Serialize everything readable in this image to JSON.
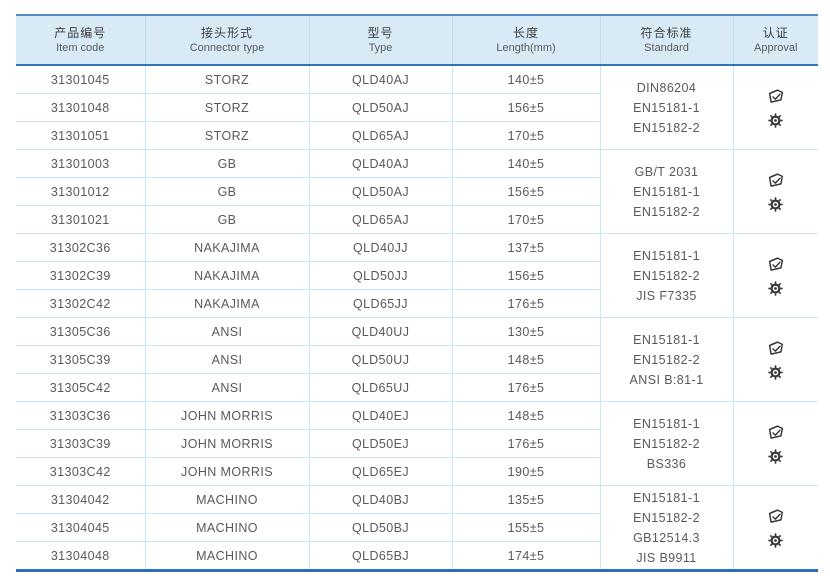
{
  "table": {
    "columns": [
      {
        "zh": "产品编号",
        "en": "Item code"
      },
      {
        "zh": "接头形式",
        "en": "Connector type"
      },
      {
        "zh": "型号",
        "en": "Type"
      },
      {
        "zh": "长度",
        "en": "Length(mm)"
      },
      {
        "zh": "符合标准",
        "en": "Standard"
      },
      {
        "zh": "认证",
        "en": "Approval"
      }
    ],
    "approval_icons": [
      "certificate-stamp-icon",
      "certification-seal-icon"
    ],
    "groups": [
      {
        "rows": [
          {
            "item_code": "31301045",
            "connector": "STORZ",
            "type": "QLD40AJ",
            "length": "140±5"
          },
          {
            "item_code": "31301048",
            "connector": "STORZ",
            "type": "QLD50AJ",
            "length": "156±5"
          },
          {
            "item_code": "31301051",
            "connector": "STORZ",
            "type": "QLD65AJ",
            "length": "170±5"
          }
        ],
        "standards": [
          "DIN86204",
          "EN15181-1",
          "EN15182-2"
        ]
      },
      {
        "rows": [
          {
            "item_code": "31301003",
            "connector": "GB",
            "type": "QLD40AJ",
            "length": "140±5"
          },
          {
            "item_code": "31301012",
            "connector": "GB",
            "type": "QLD50AJ",
            "length": "156±5"
          },
          {
            "item_code": "31301021",
            "connector": "GB",
            "type": "QLD65AJ",
            "length": "170±5"
          }
        ],
        "standards": [
          "GB/T 2031",
          "EN15181-1",
          "EN15182-2"
        ]
      },
      {
        "rows": [
          {
            "item_code": "31302C36",
            "connector": "NAKAJIMA",
            "type": "QLD40JJ",
            "length": "137±5"
          },
          {
            "item_code": "31302C39",
            "connector": "NAKAJIMA",
            "type": "QLD50JJ",
            "length": "156±5"
          },
          {
            "item_code": "31302C42",
            "connector": "NAKAJIMA",
            "type": "QLD65JJ",
            "length": "176±5"
          }
        ],
        "standards": [
          "EN15181-1",
          "EN15182-2",
          "JIS F7335"
        ]
      },
      {
        "rows": [
          {
            "item_code": "31305C36",
            "connector": "ANSI",
            "type": "QLD40UJ",
            "length": "130±5"
          },
          {
            "item_code": "31305C39",
            "connector": "ANSI",
            "type": "QLD50UJ",
            "length": "148±5"
          },
          {
            "item_code": "31305C42",
            "connector": "ANSI",
            "type": "QLD65UJ",
            "length": "176±5"
          }
        ],
        "standards": [
          "EN15181-1",
          "EN15182-2",
          "ANSI B:81-1"
        ]
      },
      {
        "rows": [
          {
            "item_code": "31303C36",
            "connector": "JOHN MORRIS",
            "type": "QLD40EJ",
            "length": "148±5"
          },
          {
            "item_code": "31303C39",
            "connector": "JOHN MORRIS",
            "type": "QLD50EJ",
            "length": "176±5"
          },
          {
            "item_code": "31303C42",
            "connector": "JOHN MORRIS",
            "type": "QLD65EJ",
            "length": "190±5"
          }
        ],
        "standards": [
          "EN15181-1",
          "EN15182-2",
          "BS336"
        ]
      },
      {
        "rows": [
          {
            "item_code": "31304042",
            "connector": "MACHINO",
            "type": "QLD40BJ",
            "length": "135±5"
          },
          {
            "item_code": "31304045",
            "connector": "MACHINO",
            "type": "QLD50BJ",
            "length": "155±5"
          },
          {
            "item_code": "31304048",
            "connector": "MACHINO",
            "type": "QLD65BJ",
            "length": "174±5"
          }
        ],
        "standards": [
          "EN15181-1",
          "EN15182-2",
          "GB12514.3",
          "JIS B9911"
        ]
      }
    ]
  },
  "colors": {
    "header_bg": "#d9eaf7",
    "header_top_border": "#5488c7",
    "header_bottom_border": "#2e74b5",
    "grid_line": "#c9e6f5",
    "table_bottom_border": "#2f6db8",
    "text": "#595959",
    "icon": "#383838"
  }
}
